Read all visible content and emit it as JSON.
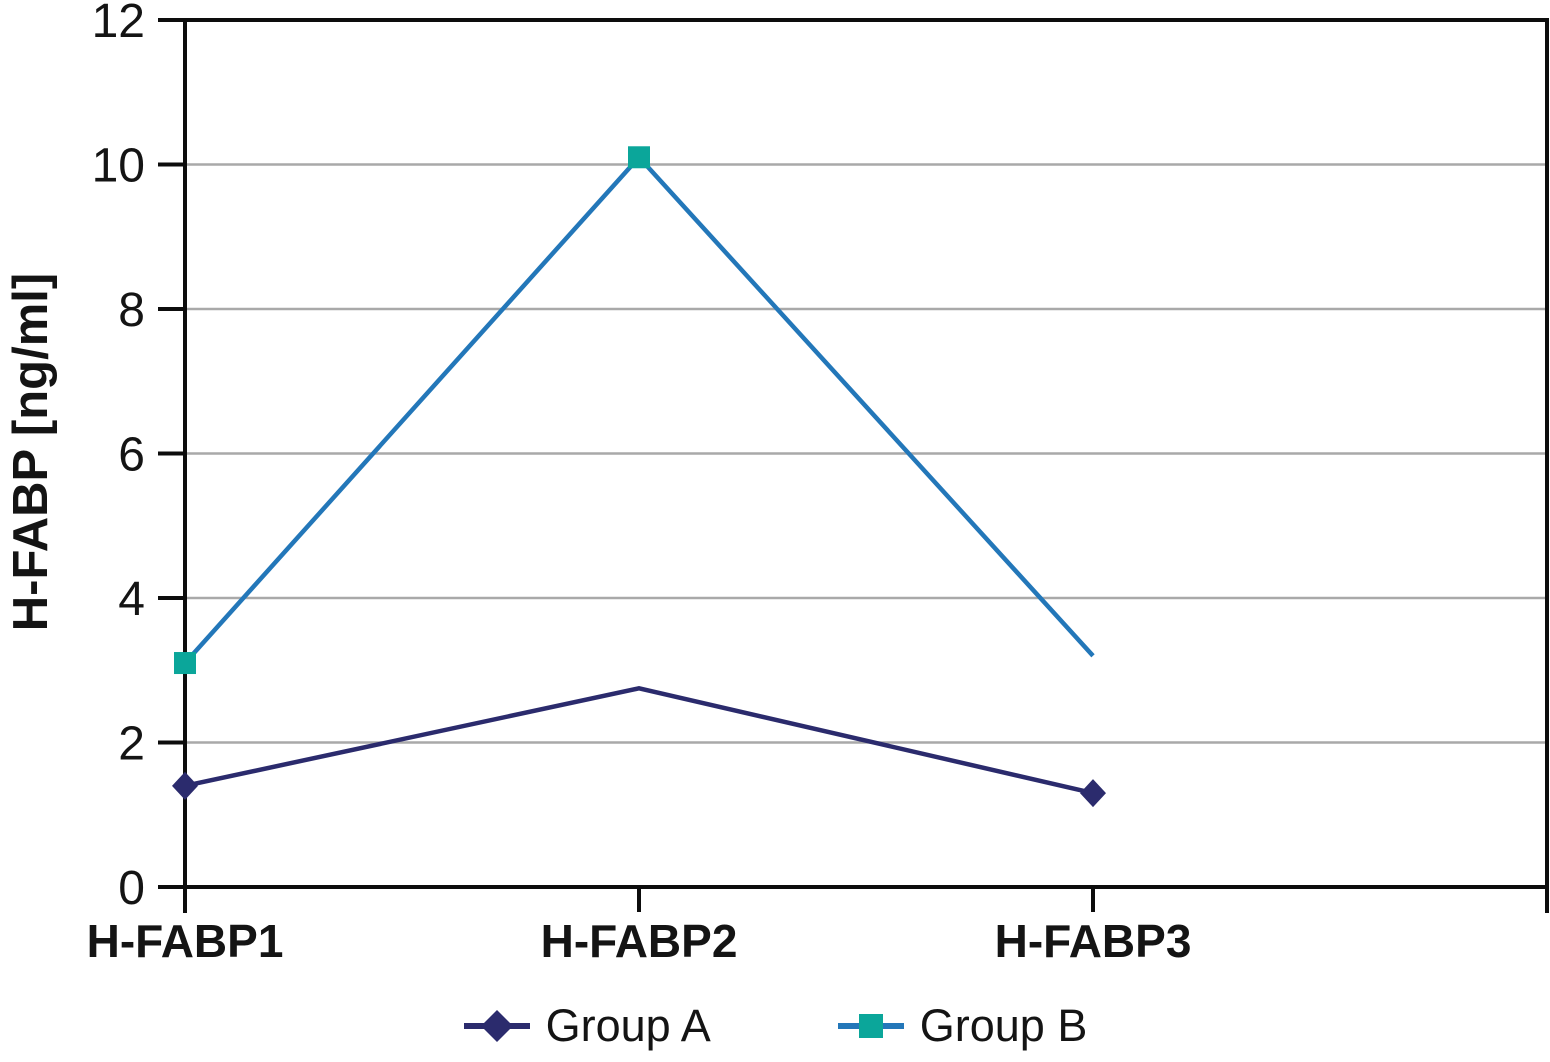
{
  "figure": {
    "background": "#ffffff"
  },
  "chart_data": {
    "type": "line",
    "title": "",
    "xlabel": "",
    "ylabel": "H-FABP [ng/ml]",
    "categories": [
      "H-FABP1",
      "H-FABP2",
      "H-FABP3"
    ],
    "series": [
      {
        "name": "Group A",
        "values": [
          1.4,
          2.75,
          1.3
        ],
        "line_color": "#2B2B6D",
        "marker": "diamond",
        "marker_color": "#2B2B6D",
        "marker_at": [
          0,
          2
        ]
      },
      {
        "name": "Group B",
        "values": [
          3.1,
          10.1,
          3.2
        ],
        "line_color": "#2377B9",
        "marker": "square",
        "marker_color": "#0BA69A",
        "marker_at": [
          0,
          1
        ]
      }
    ],
    "ylim": [
      0,
      12
    ],
    "yticks": [
      0,
      2,
      4,
      6,
      8,
      10,
      12
    ],
    "x_slots": 4,
    "grid": "horizontal",
    "legend_position": "bottom",
    "colors": {
      "axis": "#0D0D0D",
      "grid": "#A9A9A9",
      "text": "#141414"
    }
  }
}
